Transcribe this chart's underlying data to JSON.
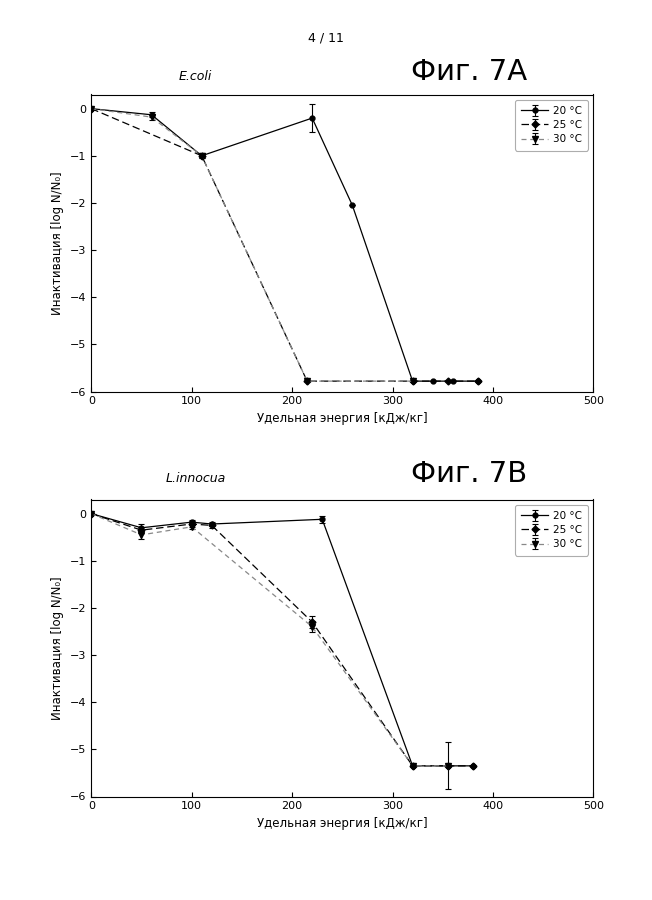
{
  "page_label": "4 / 11",
  "fig7A_title": "E.coli",
  "fig7A_label": "Фиг. 7A",
  "fig7B_title": "L.innocua",
  "fig7B_label": "Фиг. 7В",
  "ylabel": "Инактивация [log N/N₀]",
  "xlabel": "Удельная энергия [кДж/кг]",
  "xlim": [
    0,
    500
  ],
  "ylim": [
    -6,
    0.3
  ],
  "xticks": [
    0,
    100,
    200,
    300,
    400,
    500
  ],
  "yticks": [
    0,
    -1,
    -2,
    -3,
    -4,
    -5,
    -6
  ],
  "legend_labels": [
    "20 °C",
    "25 °C",
    "30 °C"
  ],
  "A_20_x": [
    0,
    60,
    110,
    220,
    260,
    320,
    340,
    360,
    385
  ],
  "A_20_y": [
    0,
    -0.13,
    -1.0,
    -0.2,
    -2.05,
    -5.78,
    -5.78,
    -5.78,
    -5.78
  ],
  "A_20_yerr": [
    0,
    0.05,
    0.05,
    0.3,
    0.0,
    0.0,
    0.0,
    0.0,
    0.0
  ],
  "A_25_x": [
    0,
    110,
    215,
    320,
    355,
    385
  ],
  "A_25_y": [
    0,
    -1.0,
    -5.78,
    -5.78,
    -5.78,
    -5.78
  ],
  "A_25_yerr": [
    0,
    0.0,
    0.0,
    0.0,
    0.0,
    0.0
  ],
  "A_30_x": [
    0,
    60,
    110,
    215,
    320
  ],
  "A_30_y": [
    0,
    -0.18,
    -1.0,
    -5.78,
    -5.78
  ],
  "A_30_yerr": [
    0,
    0.06,
    0.05,
    0.0,
    0.0
  ],
  "B_20_x": [
    0,
    50,
    100,
    120,
    230,
    320,
    355,
    380
  ],
  "B_20_y": [
    0,
    -0.3,
    -0.18,
    -0.22,
    -0.12,
    -5.35,
    -5.35,
    -5.35
  ],
  "B_20_yerr": [
    0,
    0.07,
    0.05,
    0.05,
    0.07,
    0.0,
    0.5,
    0.0
  ],
  "B_25_x": [
    0,
    50,
    100,
    120,
    220,
    320,
    355,
    380
  ],
  "B_25_y": [
    0,
    -0.35,
    -0.22,
    -0.25,
    -2.3,
    -5.35,
    -5.35,
    -5.35
  ],
  "B_25_yerr": [
    0,
    0.07,
    0.06,
    0.05,
    0.12,
    0.0,
    0.0,
    0.0
  ],
  "B_30_x": [
    0,
    50,
    100,
    220,
    320,
    355
  ],
  "B_30_y": [
    0,
    -0.45,
    -0.28,
    -2.4,
    -5.35,
    -5.35
  ],
  "B_30_yerr": [
    0,
    0.08,
    0.05,
    0.12,
    0.0,
    0.0
  ],
  "color_20": "#000000",
  "color_25": "#000000",
  "color_30": "#888888",
  "bg_color": "#ffffff"
}
